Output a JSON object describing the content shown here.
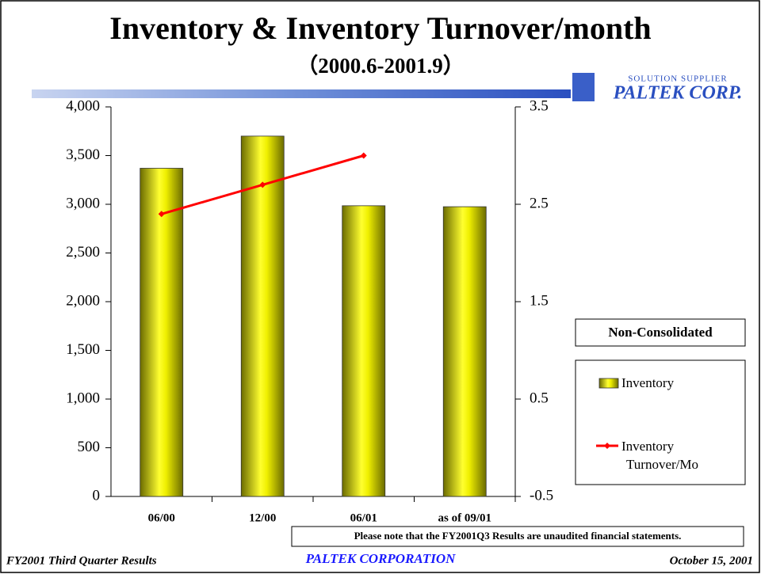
{
  "header": {
    "title": "Inventory & Inventory Turnover/month",
    "subtitle": "（2000.6-2001.9）"
  },
  "logo": {
    "tagline": "SOLUTION SUPPLIER",
    "name": "PALTEK CORP."
  },
  "chart_data": {
    "type": "bar",
    "categories": [
      "06/00",
      "12/00",
      "06/01",
      "as of 09/01"
    ],
    "series": [
      {
        "name": "Inventory",
        "color": "#e8e800",
        "values": [
          3370,
          3700,
          2985,
          2975
        ]
      },
      {
        "name": "Inventory Turnover/Mo",
        "type": "line",
        "axis": "y2",
        "color": "#ff0000",
        "values": [
          2.4,
          2.7,
          3.0,
          null
        ]
      }
    ],
    "ylim": [
      0,
      4000
    ],
    "yticks": [
      0,
      {
        "value": 500,
        "label": "500"
      },
      {
        "value": 1000,
        "label": "1,000"
      },
      {
        "value": 1500,
        "label": "1,500"
      },
      {
        "value": 2000,
        "label": "2,000"
      },
      {
        "value": 2500,
        "label": "2,500"
      },
      {
        "value": 3000,
        "label": "3,000"
      },
      {
        "value": 3500,
        "label": "3,500"
      },
      {
        "value": 4000,
        "label": "4,000"
      }
    ],
    "y2lim": [
      -0.5,
      3.5
    ],
    "y2ticks": [
      -0.5,
      0.5,
      1.5,
      2.5,
      3.5
    ],
    "grid": false,
    "legend_title": "Non-Consolidated"
  },
  "note": "Please note that the FY2001Q3 Results are unaudited financial statements.",
  "footer": {
    "left": "FY2001 Third Quarter Results",
    "center": "PALTEK CORPORATION",
    "right": "October 15, 2001"
  }
}
